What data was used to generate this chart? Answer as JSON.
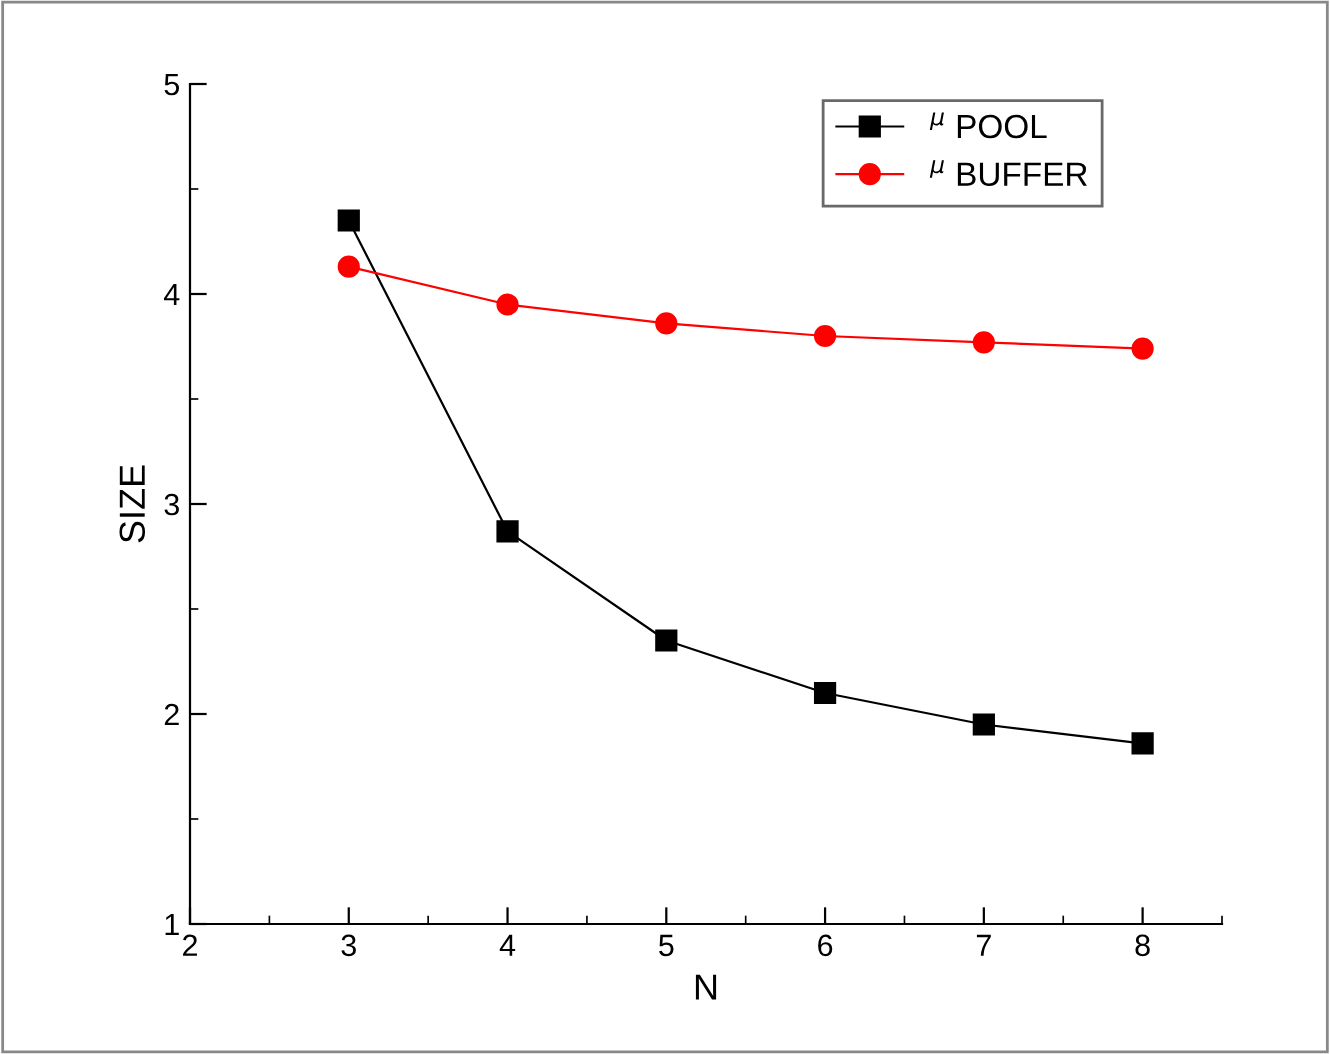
{
  "chart_data": {
    "type": "line",
    "xlabel": "N",
    "ylabel": "SIZE",
    "x": [
      3,
      4,
      5,
      6,
      7,
      8
    ],
    "series": [
      {
        "name": "$^{μ}$ POOL",
        "color": "#000000",
        "marker": "square",
        "values": [
          4.35,
          2.87,
          2.35,
          2.1,
          1.95,
          1.86
        ]
      },
      {
        "name": "$^{μ}$ BUFFER",
        "color": "#ff0000",
        "marker": "circle",
        "values": [
          4.13,
          3.95,
          3.86,
          3.8,
          3.77,
          3.74
        ]
      }
    ],
    "xlim": [
      2,
      8.5
    ],
    "xticks": [
      2,
      3,
      4,
      5,
      6,
      7,
      8
    ],
    "ylim": [
      1,
      5
    ],
    "yticks": [
      1,
      2,
      3,
      4,
      5
    ],
    "grid": false,
    "legend": "top right",
    "line_style": "solid"
  }
}
